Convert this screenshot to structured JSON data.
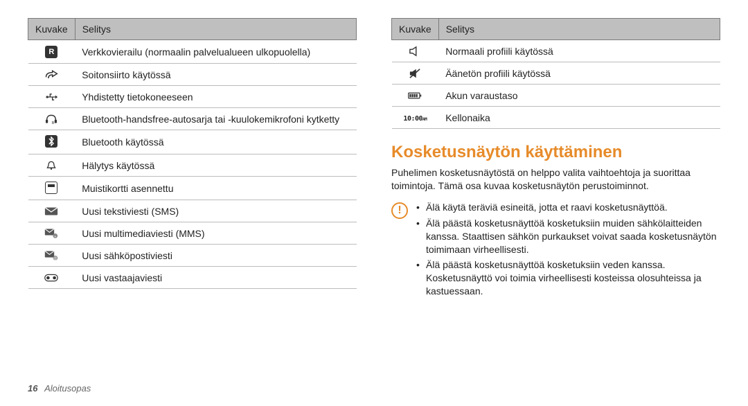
{
  "colors": {
    "header_bg": "#bfbfbf",
    "border": "#7a7a7a",
    "row_border": "#bcbcbc",
    "accent": "#e78b2a",
    "text": "#222222"
  },
  "left_table": {
    "headers": [
      "Kuvake",
      "Selitys"
    ],
    "rows": [
      {
        "icon": "R",
        "desc": "Verkkovierailu (normaalin palvelualueen ulkopuolella)"
      },
      {
        "icon": "forward",
        "desc": "Soitonsiirto käytössä"
      },
      {
        "icon": "usb",
        "desc": "Yhdistetty tietokoneeseen"
      },
      {
        "icon": "headset",
        "desc": "Bluetooth-handsfree-autosarja tai -kuulokemikrofoni kytketty"
      },
      {
        "icon": "bt",
        "desc": "Bluetooth käytössä"
      },
      {
        "icon": "bell",
        "desc": "Hälytys käytössä"
      },
      {
        "icon": "sd",
        "desc": "Muistikortti asennettu"
      },
      {
        "icon": "sms",
        "desc": "Uusi tekstiviesti (SMS)"
      },
      {
        "icon": "mms",
        "desc": "Uusi multimediaviesti (MMS)"
      },
      {
        "icon": "email",
        "desc": "Uusi sähköpostiviesti"
      },
      {
        "icon": "vm",
        "desc": "Uusi vastaajaviesti"
      }
    ]
  },
  "right_table": {
    "headers": [
      "Kuvake",
      "Selitys"
    ],
    "rows": [
      {
        "icon": "sound",
        "desc": "Normaali profiili käytössä"
      },
      {
        "icon": "mute",
        "desc": "Äänetön profiili käytössä"
      },
      {
        "icon": "battery",
        "desc": "Akun varaustaso"
      },
      {
        "icon": "clock",
        "desc": "Kellonaika"
      }
    ]
  },
  "section": {
    "heading": "Kosketusnäytön käyttäminen",
    "intro": "Puhelimen kosketusnäytöstä on helppo valita vaihtoehtoja ja suorittaa toimintoja. Tämä osa kuvaa kosketusnäytön perustoiminnot.",
    "warnings": [
      "Älä käytä teräviä esineitä, jotta et raavi kosketusnäyttöä.",
      "Älä päästä kosketusnäyttöä kosketuksiin muiden sähkölaitteiden kanssa. Staattisen sähkön purkaukset voivat saada kosketusnäytön toimimaan virheellisesti.",
      "Älä päästä kosketusnäyttöä kosketuksiin veden kanssa. Kosketusnäyttö voi toimia virheellisesti kosteissa olosuhteissa ja kastuessaan."
    ]
  },
  "footer": {
    "page": "16",
    "section": "Aloitusopas"
  }
}
